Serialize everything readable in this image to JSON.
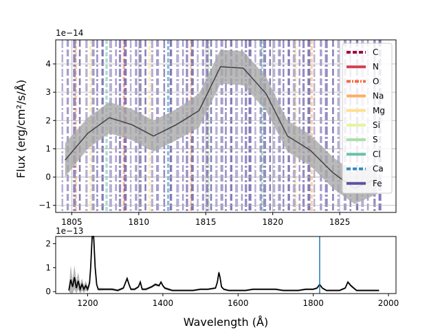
{
  "chart_data": [
    {
      "type": "line",
      "panel": "top",
      "ylabel": "Flux (erg/cm²/s/Å)",
      "offset_text": "1e−14",
      "xlim": [
        1803.8,
        1829.2
      ],
      "ylim": [
        -1.25,
        4.85
      ],
      "x_ticks": [
        1805,
        1810,
        1815,
        1820,
        1825
      ],
      "y_ticks": [
        -1,
        0,
        1,
        2,
        3,
        4
      ],
      "grid": true,
      "legend_position": "top-right",
      "series": [
        {
          "x": [
            1804.5,
            1806.2,
            1807.8,
            1809.5,
            1811.1,
            1812.8,
            1814.5,
            1816.1,
            1817.8,
            1819.5,
            1821.1,
            1822.8,
            1824.5,
            1826.1,
            1827.8
          ],
          "y": [
            0.6,
            1.55,
            2.1,
            1.85,
            1.45,
            1.85,
            2.35,
            3.9,
            3.85,
            2.95,
            1.45,
            0.95,
            0.15,
            -0.4,
            -0.05
          ],
          "err": [
            0.6,
            0.55,
            0.55,
            0.55,
            0.55,
            0.55,
            0.6,
            0.6,
            0.6,
            0.6,
            0.55,
            0.55,
            0.55,
            0.55,
            0.55
          ],
          "color": "#404040",
          "band_color": "#a9a9a9"
        }
      ],
      "legend": [
        {
          "label": "C",
          "color": "#9e0142",
          "dash": "dash"
        },
        {
          "label": "N",
          "color": "#d53e4f",
          "dash": "solid"
        },
        {
          "label": "O",
          "color": "#f46d43",
          "dash": "dashdot"
        },
        {
          "label": "Na",
          "color": "#fdae61",
          "dash": "solid"
        },
        {
          "label": "Mg",
          "color": "#fee08b",
          "dash": "solid"
        },
        {
          "label": "Si",
          "color": "#e6f598",
          "dash": "solid"
        },
        {
          "label": "S",
          "color": "#abdda4",
          "dash": "solid"
        },
        {
          "label": "Cl",
          "color": "#66c2a5",
          "dash": "solid"
        },
        {
          "label": "Ca",
          "color": "#3288bd",
          "dash": "dash"
        },
        {
          "label": "Fe",
          "color": "#5e4fa2",
          "dash": "solid"
        }
      ],
      "line_markers": {
        "fe_color": "#5e4fa2",
        "fe_x": [
          1804.3,
          1804.7,
          1805.2,
          1805.6,
          1806.1,
          1806.6,
          1806.9,
          1807.3,
          1807.9,
          1808.3,
          1808.6,
          1809.0,
          1809.4,
          1809.8,
          1810.1,
          1810.5,
          1811.0,
          1811.4,
          1811.9,
          1812.4,
          1812.9,
          1813.3,
          1813.6,
          1814.0,
          1814.4,
          1814.8,
          1815.1,
          1815.4,
          1815.8,
          1816.2,
          1816.5,
          1816.9,
          1817.3,
          1817.7,
          1818.0,
          1818.3,
          1818.7,
          1819.1,
          1819.4,
          1819.8,
          1820.1,
          1820.5,
          1820.8,
          1821.2,
          1821.6,
          1822.0,
          1822.3,
          1822.7,
          1823.1,
          1823.6,
          1824.0,
          1824.5,
          1824.9,
          1825.4,
          1825.8,
          1826.3,
          1826.7,
          1827.1,
          1827.6,
          1828.0
        ],
        "other": [
          {
            "x": 1805.3,
            "color": "#fdae61"
          },
          {
            "x": 1806.4,
            "color": "#fee08b"
          },
          {
            "x": 1807.6,
            "color": "#66c2a5"
          },
          {
            "x": 1808.9,
            "color": "#f46d43"
          },
          {
            "x": 1810.8,
            "color": "#fee08b"
          },
          {
            "x": 1812.2,
            "color": "#3288bd"
          },
          {
            "x": 1813.9,
            "color": "#fdae61"
          },
          {
            "x": 1815.2,
            "color": "#abdda4"
          },
          {
            "x": 1819.2,
            "color": "#66c2a5"
          },
          {
            "x": 1821.7,
            "color": "#fee08b"
          },
          {
            "x": 1822.9,
            "color": "#fdae61"
          }
        ]
      }
    },
    {
      "type": "line",
      "panel": "bottom",
      "xlabel": "Wavelength (Å)",
      "offset_text": "1e−13",
      "xlim": [
        1115,
        2020
      ],
      "ylim": [
        -0.08,
        2.3
      ],
      "x_ticks": [
        1200,
        1400,
        1600,
        1800,
        2000
      ],
      "y_ticks": [
        0,
        1,
        2
      ],
      "marker_x": 1817,
      "marker_color": "#1f77b4",
      "series": [
        {
          "color": "#000000",
          "band_color": "#a9a9a9",
          "x": [
            1150,
            1155,
            1160,
            1165,
            1170,
            1175,
            1180,
            1185,
            1190,
            1195,
            1200,
            1205,
            1208,
            1212,
            1216,
            1220,
            1224,
            1228,
            1235,
            1245,
            1255,
            1265,
            1280,
            1295,
            1305,
            1310,
            1315,
            1325,
            1335,
            1340,
            1345,
            1355,
            1370,
            1380,
            1390,
            1395,
            1400,
            1405,
            1415,
            1425,
            1440,
            1460,
            1480,
            1500,
            1520,
            1540,
            1545,
            1549,
            1552,
            1556,
            1562,
            1575,
            1600,
            1620,
            1640,
            1660,
            1680,
            1700,
            1720,
            1740,
            1760,
            1780,
            1800,
            1810,
            1817,
            1824,
            1835,
            1850,
            1870,
            1885,
            1892,
            1900,
            1915,
            1930,
            1950,
            1975
          ],
          "y": [
            0.05,
            0.5,
            0.2,
            0.6,
            0.15,
            0.45,
            0.1,
            0.3,
            0.1,
            0.25,
            0.1,
            0.35,
            1.0,
            2.3,
            2.3,
            1.0,
            0.3,
            0.1,
            0.1,
            0.1,
            0.1,
            0.1,
            0.05,
            0.15,
            0.55,
            0.3,
            0.1,
            0.1,
            0.2,
            0.4,
            0.1,
            0.1,
            0.2,
            0.3,
            0.25,
            0.4,
            0.25,
            0.15,
            0.1,
            0.05,
            0.05,
            0.05,
            0.05,
            0.1,
            0.1,
            0.15,
            0.4,
            0.8,
            0.6,
            0.2,
            0.1,
            0.05,
            0.05,
            0.05,
            0.1,
            0.1,
            0.1,
            0.1,
            0.05,
            0.05,
            0.05,
            0.1,
            0.1,
            0.15,
            0.3,
            0.15,
            0.05,
            0.05,
            0.05,
            0.15,
            0.4,
            0.25,
            0.05,
            0.05,
            0.05,
            0.05
          ],
          "err": [
            0.05,
            0.6,
            0.3,
            0.5,
            0.3,
            0.35,
            0.2,
            0.25,
            0.15,
            0.2,
            0.12,
            0.15,
            0.15,
            0.1,
            0.1,
            0.1,
            0.08,
            0.06,
            0.06,
            0.05,
            0.05,
            0.05,
            0.05,
            0.05,
            0.08,
            0.05,
            0.05,
            0.05,
            0.05,
            0.06,
            0.05,
            0.05,
            0.05,
            0.06,
            0.05,
            0.06,
            0.05,
            0.05,
            0.05,
            0.04,
            0.04,
            0.04,
            0.04,
            0.04,
            0.04,
            0.04,
            0.06,
            0.1,
            0.08,
            0.05,
            0.04,
            0.04,
            0.04,
            0.04,
            0.04,
            0.04,
            0.04,
            0.04,
            0.04,
            0.04,
            0.04,
            0.04,
            0.04,
            0.04,
            0.05,
            0.04,
            0.04,
            0.04,
            0.04,
            0.04,
            0.06,
            0.05,
            0.04,
            0.04,
            0.04,
            0.04
          ]
        }
      ]
    }
  ]
}
